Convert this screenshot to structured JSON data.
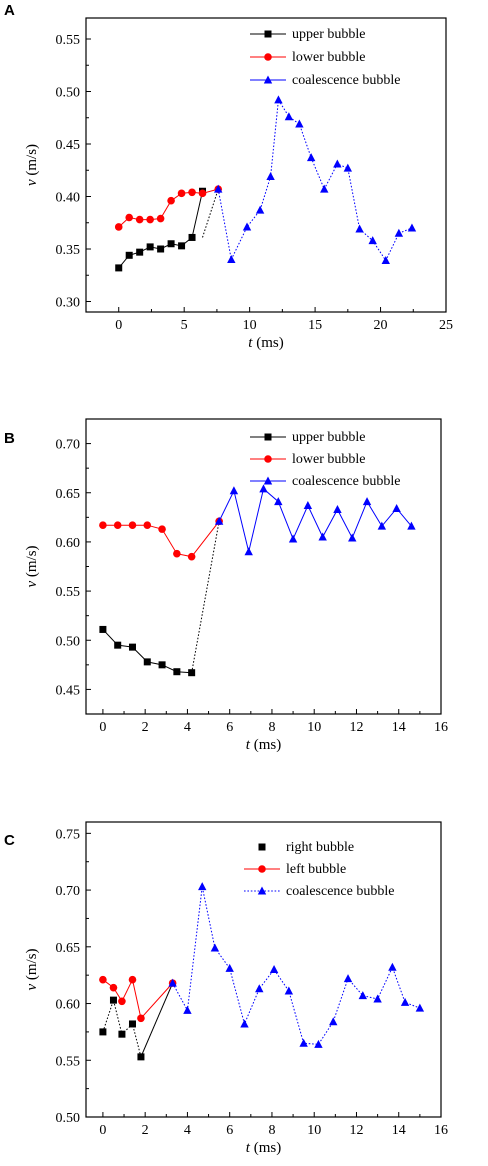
{
  "chart_data": [
    {
      "type": "line",
      "panel_label": "A",
      "xlabel_var": "t",
      "xlabel_unit": " (ms)",
      "ylabel_var": "v",
      "ylabel_unit": " (m/s)",
      "xlim": [
        -2.5,
        25
      ],
      "ylim": [
        0.29,
        0.57
      ],
      "xticks": [
        "0",
        "5",
        "10",
        "15",
        "20",
        "25"
      ],
      "xtick_values": [
        0,
        5,
        10,
        15,
        20,
        25
      ],
      "yticks": [
        "0.30",
        "0.35",
        "0.40",
        "0.45",
        "0.50",
        "0.55"
      ],
      "ytick_values": [
        0.3,
        0.35,
        0.4,
        0.45,
        0.5,
        0.55
      ],
      "grid": false,
      "legend_position": "top-right",
      "series": [
        {
          "name": "upper bubble",
          "color": "#000000",
          "marker": "square",
          "line_style": "solid",
          "x": [
            0,
            0.8,
            1.6,
            2.4,
            3.2,
            4.0,
            4.8,
            5.6,
            6.4
          ],
          "y": [
            0.332,
            0.344,
            0.347,
            0.352,
            0.35,
            0.355,
            0.353,
            0.361,
            0.405
          ]
        },
        {
          "name": "lower bubble",
          "color": "#ff0000",
          "marker": "circle",
          "line_style": "solid",
          "x": [
            0,
            0.8,
            1.6,
            2.4,
            3.2,
            4.0,
            4.8,
            5.6,
            6.4,
            7.6
          ],
          "y": [
            0.371,
            0.38,
            0.378,
            0.378,
            0.379,
            0.396,
            0.403,
            0.404,
            0.403,
            0.407
          ]
        },
        {
          "name": "coalescence bubble",
          "color": "#0000ff",
          "marker": "triangle",
          "line_style": "dotted",
          "x": [
            7.6,
            8.6,
            9.8,
            10.8,
            11.6,
            12.2,
            13.0,
            13.8,
            14.7,
            15.7,
            16.7,
            17.5,
            18.4,
            19.4,
            20.4,
            21.4,
            22.4
          ],
          "y": [
            0.407,
            0.34,
            0.371,
            0.387,
            0.419,
            0.492,
            0.476,
            0.469,
            0.437,
            0.407,
            0.431,
            0.427,
            0.369,
            0.358,
            0.339,
            0.365,
            0.37
          ]
        }
      ],
      "connector": {
        "color": "#000000",
        "line_style": "dotted",
        "from": [
          6.4,
          0.361
        ],
        "to": [
          7.6,
          0.407
        ]
      }
    },
    {
      "type": "line",
      "panel_label": "B",
      "xlabel_var": "t",
      "xlabel_unit": " (ms)",
      "ylabel_var": "v",
      "ylabel_unit": " (m/s)",
      "xlim": [
        -0.8,
        16
      ],
      "ylim": [
        0.425,
        0.725
      ],
      "xticks": [
        "0",
        "2",
        "4",
        "6",
        "8",
        "10",
        "12",
        "14",
        "16"
      ],
      "xtick_values": [
        0,
        2,
        4,
        6,
        8,
        10,
        12,
        14,
        16
      ],
      "yticks": [
        "0.45",
        "0.50",
        "0.55",
        "0.60",
        "0.65",
        "0.70"
      ],
      "ytick_values": [
        0.45,
        0.5,
        0.55,
        0.6,
        0.65,
        0.7
      ],
      "grid": false,
      "legend_position": "top-right",
      "series": [
        {
          "name": "upper bubble",
          "color": "#000000",
          "marker": "square",
          "line_style": "solid",
          "x": [
            0,
            0.7,
            1.4,
            2.1,
            2.8,
            3.5,
            4.2
          ],
          "y": [
            0.511,
            0.495,
            0.493,
            0.478,
            0.475,
            0.468,
            0.467
          ]
        },
        {
          "name": "lower bubble",
          "color": "#ff0000",
          "marker": "circle",
          "line_style": "solid",
          "x": [
            0,
            0.7,
            1.4,
            2.1,
            2.8,
            3.5,
            4.2,
            5.5
          ],
          "y": [
            0.617,
            0.617,
            0.617,
            0.617,
            0.613,
            0.588,
            0.585,
            0.621
          ]
        },
        {
          "name": "coalescence bubble",
          "color": "#0000ff",
          "marker": "triangle",
          "line_style": "solid",
          "x": [
            5.5,
            6.2,
            6.9,
            7.6,
            8.3,
            9.0,
            9.7,
            10.4,
            11.1,
            11.8,
            12.5,
            13.2,
            13.9,
            14.6
          ],
          "y": [
            0.621,
            0.652,
            0.59,
            0.654,
            0.641,
            0.603,
            0.637,
            0.605,
            0.633,
            0.604,
            0.641,
            0.616,
            0.634,
            0.616
          ]
        }
      ],
      "connector": {
        "color": "#000000",
        "line_style": "dotted",
        "from": [
          4.2,
          0.467
        ],
        "to": [
          5.5,
          0.621
        ]
      }
    },
    {
      "type": "line",
      "panel_label": "C",
      "xlabel_var": "t",
      "xlabel_unit": " (ms)",
      "ylabel_var": "v",
      "ylabel_unit": " (m/s)",
      "xlim": [
        -0.8,
        16
      ],
      "ylim": [
        0.5,
        0.76
      ],
      "xticks": [
        "0",
        "2",
        "4",
        "6",
        "8",
        "10",
        "12",
        "14",
        "16"
      ],
      "xtick_values": [
        0,
        2,
        4,
        6,
        8,
        10,
        12,
        14,
        16
      ],
      "yticks": [
        "0.50",
        "0.55",
        "0.60",
        "0.65",
        "0.70",
        "0.75"
      ],
      "ytick_values": [
        0.5,
        0.55,
        0.6,
        0.65,
        0.7,
        0.75
      ],
      "grid": false,
      "legend_position": "top-right",
      "series": [
        {
          "name": "right bubble",
          "color": "#000000",
          "marker": "square",
          "line_style": "dotted",
          "x": [
            0,
            0.5,
            0.9,
            1.4,
            1.8
          ],
          "y": [
            0.575,
            0.603,
            0.573,
            0.582,
            0.553
          ]
        },
        {
          "name": "left bubble",
          "color": "#ff0000",
          "marker": "circle",
          "line_style": "solid",
          "x": [
            0,
            0.5,
            0.9,
            1.4,
            1.8,
            3.3
          ],
          "y": [
            0.621,
            0.614,
            0.602,
            0.621,
            0.587,
            0.618
          ]
        },
        {
          "name": "coalescence bubble",
          "color": "#0000ff",
          "marker": "triangle",
          "line_style": "dotted",
          "x": [
            3.3,
            4.0,
            4.7,
            5.3,
            6.0,
            6.7,
            7.4,
            8.1,
            8.8,
            9.5,
            10.2,
            10.9,
            11.6,
            12.3,
            13.0,
            13.7,
            14.3,
            15.0
          ],
          "y": [
            0.618,
            0.594,
            0.703,
            0.649,
            0.631,
            0.582,
            0.613,
            0.63,
            0.611,
            0.565,
            0.564,
            0.584,
            0.622,
            0.607,
            0.604,
            0.632,
            0.601,
            0.596
          ]
        }
      ],
      "connector": {
        "color": "#000000",
        "line_style": "solid",
        "from": [
          1.8,
          0.553
        ],
        "to": [
          3.3,
          0.618
        ]
      }
    }
  ]
}
